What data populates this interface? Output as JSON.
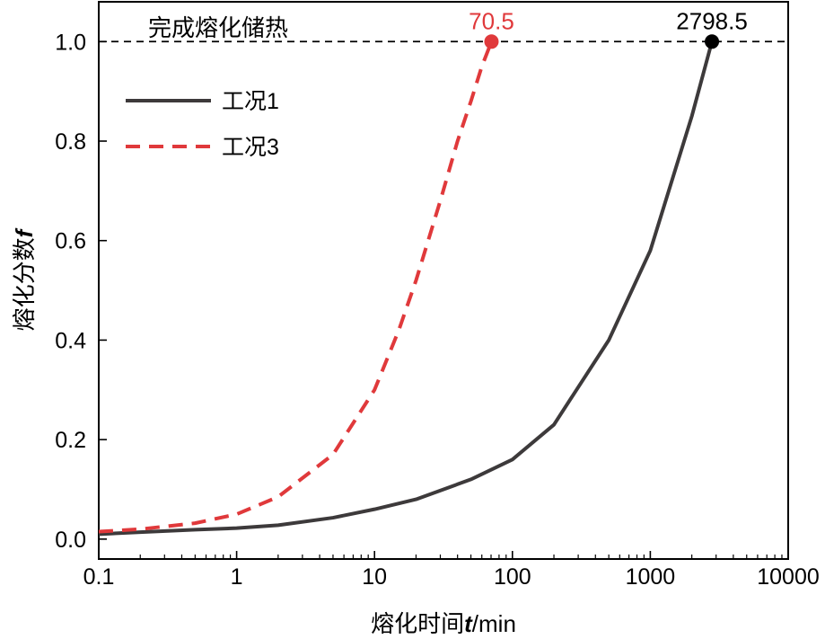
{
  "chart_data": {
    "type": "line",
    "xlabel_main": "熔化时间",
    "xlabel_var": "t",
    "xlabel_unit": "/min",
    "ylabel_main": "熔化分数",
    "ylabel_var": "f",
    "x_scale": "log",
    "xlim": [
      0.1,
      10000
    ],
    "ylim": [
      -0.04,
      1.08
    ],
    "xticks": [
      0.1,
      1,
      10,
      100,
      1000,
      10000
    ],
    "xtick_labels": [
      "0.1",
      "1",
      "10",
      "100",
      "1000",
      "10000"
    ],
    "yticks": [
      0.0,
      0.2,
      0.4,
      0.6,
      0.8,
      1.0
    ],
    "ytick_labels": [
      "0.0",
      "0.2",
      "0.4",
      "0.6",
      "0.8",
      "1.0"
    ],
    "grid": false,
    "legend_position": "top-left",
    "reference_line": {
      "y": 1.0,
      "label": "完成熔化储热",
      "style": "dashed",
      "color": "#000000"
    },
    "series": [
      {
        "name": "工况1",
        "color": "#3d3a3b",
        "style": "solid",
        "x": [
          0.1,
          0.2,
          0.5,
          1,
          2,
          5,
          10,
          20,
          50,
          100,
          200,
          500,
          1000,
          2000,
          2798.5
        ],
        "y": [
          0.01,
          0.014,
          0.019,
          0.022,
          0.028,
          0.043,
          0.06,
          0.08,
          0.12,
          0.16,
          0.23,
          0.4,
          0.58,
          0.85,
          1.0
        ]
      },
      {
        "name": "工况3",
        "color": "#e0393b",
        "style": "dashed",
        "x": [
          0.1,
          0.2,
          0.5,
          1,
          2,
          5,
          10,
          15,
          20,
          30,
          40,
          50,
          60,
          70.5
        ],
        "y": [
          0.015,
          0.02,
          0.032,
          0.05,
          0.085,
          0.17,
          0.3,
          0.42,
          0.52,
          0.68,
          0.8,
          0.88,
          0.95,
          1.0
        ]
      }
    ],
    "annotations": [
      {
        "x": 70.5,
        "y": 1.0,
        "text": "70.5",
        "color": "#e0393b"
      },
      {
        "x": 2798.5,
        "y": 1.0,
        "text": "2798.5",
        "color": "#000000"
      }
    ]
  }
}
